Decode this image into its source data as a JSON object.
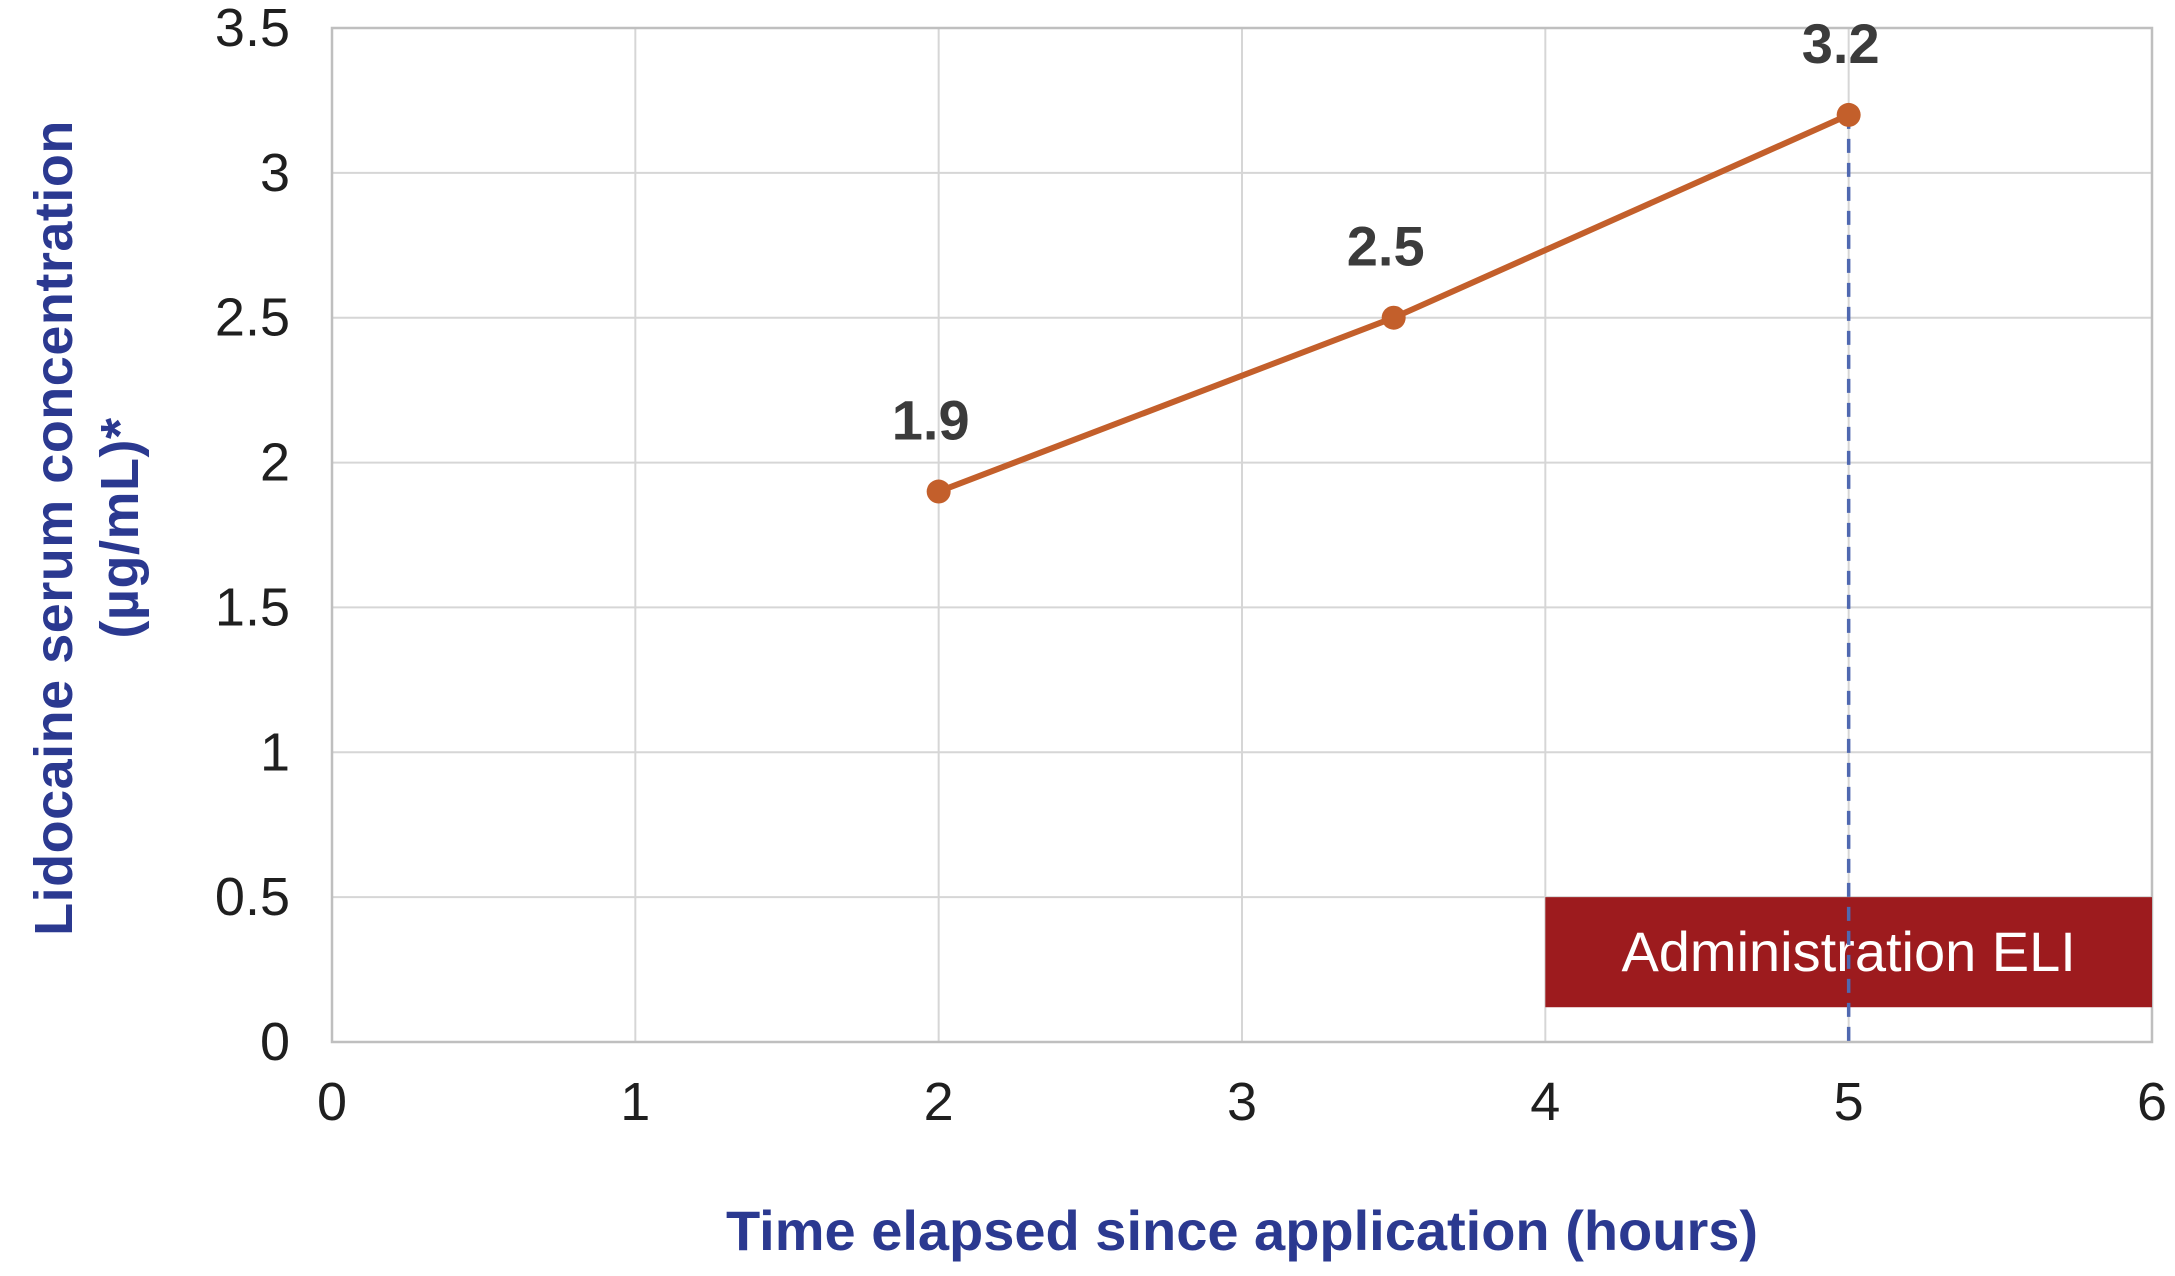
{
  "colors": {
    "axis_title": "#2b3990",
    "tick_label": "#1f1f1f",
    "line": "#c35f2b",
    "marker": "#c35f2b",
    "data_label": "#3b3b3b",
    "gridline": "#d6d6d6",
    "plot_border": "#bfbfbf",
    "dashed_line": "#4f68b0",
    "annotation_bg": "#9d1b1e",
    "annotation_text": "#ffffff"
  },
  "chart_data": {
    "type": "line",
    "title": "",
    "xlabel": "Time elapsed since application (hours)",
    "ylabel_line1": "Lidocaine serum concentration",
    "ylabel_line2": "(µg/mL)*",
    "x": [
      2,
      3.5,
      5
    ],
    "y": [
      1.9,
      2.5,
      3.2
    ],
    "data_labels": [
      "1.9",
      "2.5",
      "3.2"
    ],
    "xlim": [
      0,
      6
    ],
    "ylim": [
      0,
      3.5
    ],
    "x_ticks": [
      0,
      1,
      2,
      3,
      4,
      5,
      6
    ],
    "x_tick_labels": [
      "0",
      "1",
      "2",
      "3",
      "4",
      "5",
      "6"
    ],
    "y_ticks": [
      0,
      0.5,
      1,
      1.5,
      2,
      2.5,
      3,
      3.5
    ],
    "y_tick_labels": [
      "0",
      "0.5",
      "1",
      "1.5",
      "2",
      "2.5",
      "3",
      "3.5"
    ],
    "grid": true,
    "legend": "none",
    "reference_line_x": 5,
    "annotation": {
      "label": "Administration ELI",
      "x_start": 4,
      "x_end": 6,
      "y_bottom": 0.12,
      "y_top": 0.5
    }
  }
}
